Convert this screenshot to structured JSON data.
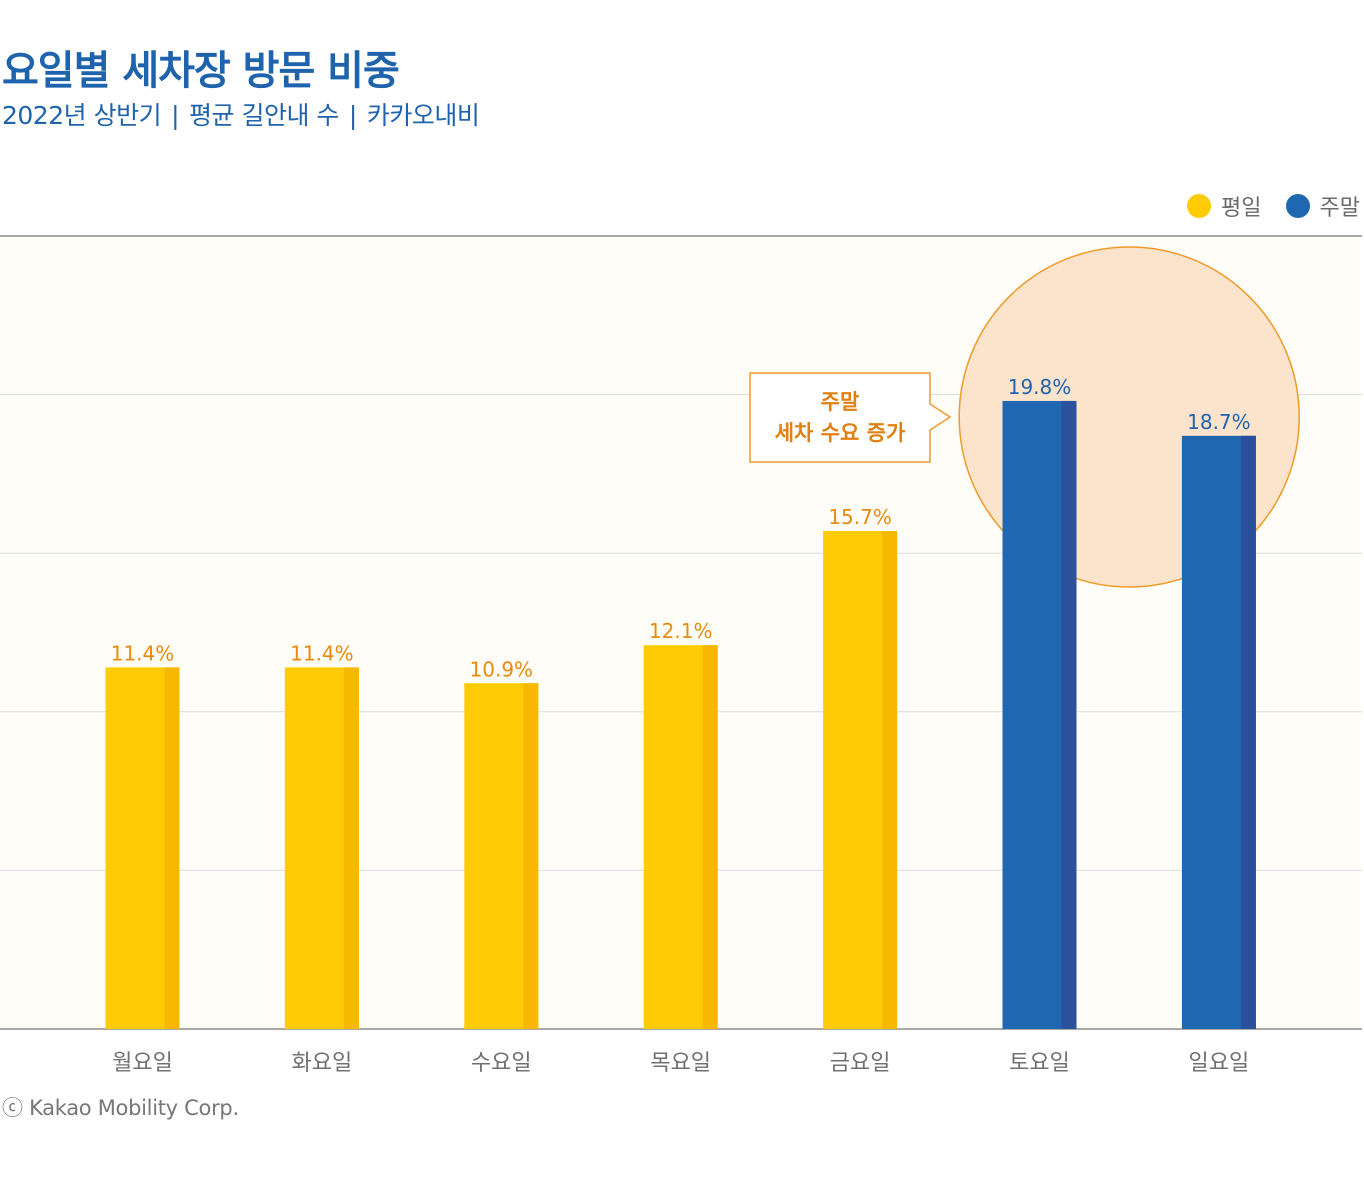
{
  "header": {
    "title": "요일별 세차장 방문 비중",
    "subtitle_parts": [
      "2022년 상반기",
      "평균 길안내 수",
      "카카오내비"
    ]
  },
  "legend": [
    {
      "label": "평일",
      "color": "#ffcb05"
    },
    {
      "label": "주말",
      "color": "#1f67b1"
    }
  ],
  "annotation": {
    "line1": "주말",
    "line2": "세차 수요 증가"
  },
  "credit": "ⓒ Kakao Mobility Corp.",
  "colors": {
    "weekday": "#ffcb05",
    "weekday_shade": "#f9b800",
    "weekend": "#1f67b1",
    "weekend_shade": "#2b509c",
    "label_weekday": "#e98a0e",
    "label_weekend": "#1f63ad",
    "plot_bg": "#fffdf7",
    "highlight_fill": "#fce4cc",
    "highlight_stroke": "#ef9a2a"
  },
  "chart_data": {
    "type": "bar",
    "categories": [
      "월요일",
      "화요일",
      "수요일",
      "목요일",
      "금요일",
      "토요일",
      "일요일"
    ],
    "values": [
      11.4,
      11.4,
      10.9,
      12.1,
      15.7,
      19.8,
      18.7
    ],
    "value_labels": [
      "11.4%",
      "11.4%",
      "10.9%",
      "12.1%",
      "15.7%",
      "19.8%",
      "18.7%"
    ],
    "group": [
      "평일",
      "평일",
      "평일",
      "평일",
      "평일",
      "주말",
      "주말"
    ],
    "ylim": [
      0,
      25
    ],
    "grid": true,
    "legend_position": "top-right",
    "highlighted_categories": [
      "토요일",
      "일요일"
    ]
  }
}
